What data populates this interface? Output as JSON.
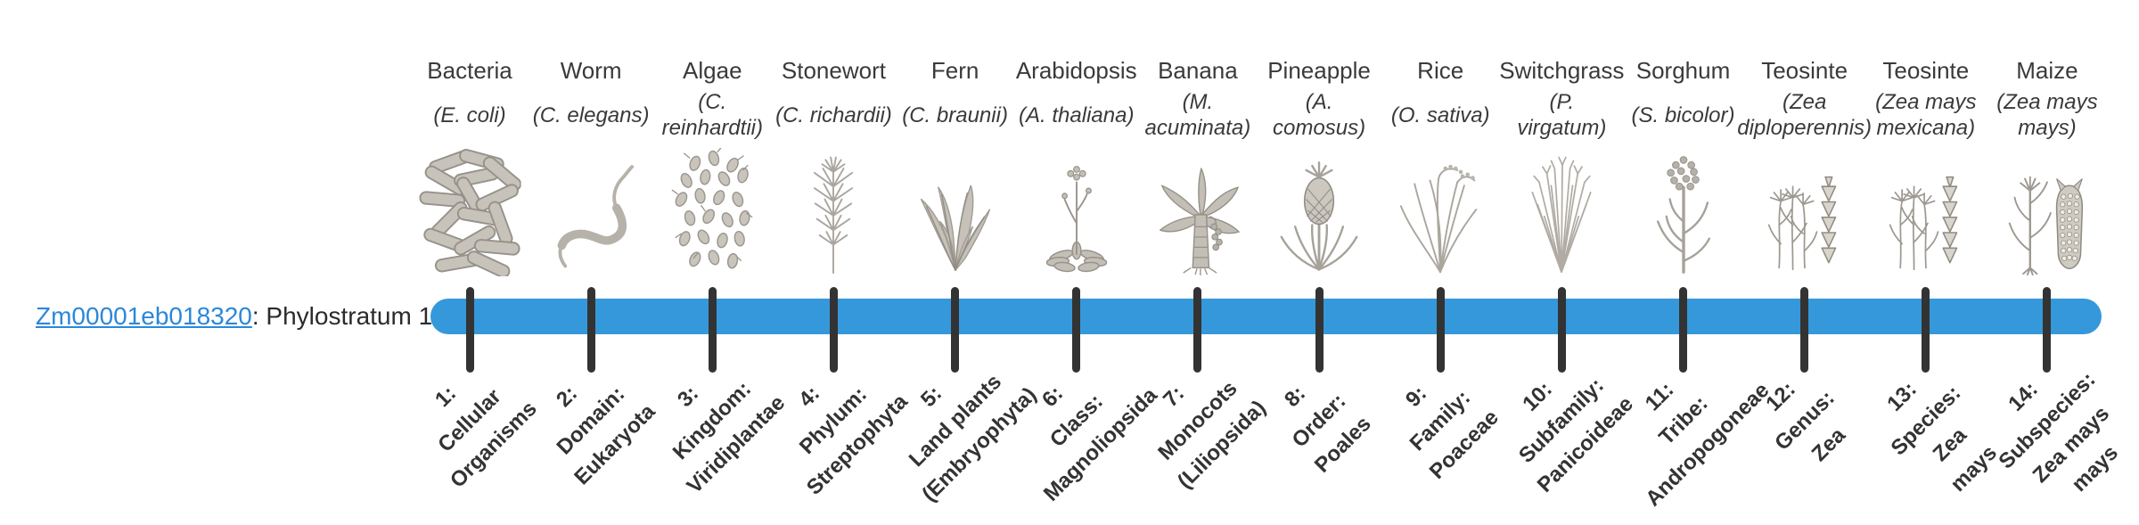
{
  "gene": {
    "gene_id": "Zm00001eb018320",
    "label_rest": ": Phylostratum 1",
    "link_color": "#2b88d9"
  },
  "timeline": {
    "bar_color": "#3598db",
    "tick_color": "#333333",
    "tick_count": 14
  },
  "columns": [
    {
      "organism": "Bacteria",
      "sci_lines": [
        "(E. coli)"
      ],
      "icon": "bacteria-icon",
      "stratum_lines": [
        "1:",
        "Cellular",
        "Organisms"
      ]
    },
    {
      "organism": "Worm",
      "sci_lines": [
        "(C. elegans)"
      ],
      "icon": "worm-icon",
      "stratum_lines": [
        "2:",
        "Domain:",
        "Eukaryota"
      ]
    },
    {
      "organism": "Algae",
      "sci_lines": [
        "(C.",
        "reinhardtii)"
      ],
      "icon": "algae-icon",
      "stratum_lines": [
        "3:",
        "Kingdom:",
        "Viridiplantae"
      ]
    },
    {
      "organism": "Stonewort",
      "sci_lines": [
        "(C. richardii)"
      ],
      "icon": "stonewort-icon",
      "stratum_lines": [
        "4:",
        "Phylum:",
        "Streptophyta"
      ]
    },
    {
      "organism": "Fern",
      "sci_lines": [
        "(C. braunii)"
      ],
      "icon": "fern-icon",
      "stratum_lines": [
        "5:",
        "Land plants",
        "(Embryophyta)"
      ]
    },
    {
      "organism": "Arabidopsis",
      "sci_lines": [
        "(A. thaliana)"
      ],
      "icon": "arabidopsis-icon",
      "stratum_lines": [
        "6:",
        "Class:",
        "Magnoliopsida"
      ]
    },
    {
      "organism": "Banana",
      "sci_lines": [
        "(M.",
        "acuminata)"
      ],
      "icon": "banana-icon",
      "stratum_lines": [
        "7:",
        "Monocots",
        "(Liliopsida)"
      ]
    },
    {
      "organism": "Pineapple",
      "sci_lines": [
        "(A.",
        "comosus)"
      ],
      "icon": "pineapple-icon",
      "stratum_lines": [
        "8:",
        "Order:",
        "Poales"
      ]
    },
    {
      "organism": "Rice",
      "sci_lines": [
        "(O. sativa)"
      ],
      "icon": "rice-icon",
      "stratum_lines": [
        "9:",
        "Family:",
        "Poaceae"
      ]
    },
    {
      "organism": "Switchgrass",
      "sci_lines": [
        "(P.",
        "virgatum)"
      ],
      "icon": "switchgrass-icon",
      "stratum_lines": [
        "10:",
        "Subfamily:",
        "Panicoideae"
      ]
    },
    {
      "organism": "Sorghum",
      "sci_lines": [
        "(S. bicolor)"
      ],
      "icon": "sorghum-icon",
      "stratum_lines": [
        "11:",
        "Tribe:",
        "Andropogoneae"
      ]
    },
    {
      "organism": "Teosinte",
      "sci_lines": [
        "(Zea",
        "diploperennis)"
      ],
      "icon": "teosinte-diploperennis-icon",
      "stratum_lines": [
        "12:",
        "Genus:",
        "Zea"
      ]
    },
    {
      "organism": "Teosinte",
      "sci_lines": [
        "(Zea mays",
        "mexicana)"
      ],
      "icon": "teosinte-mexicana-icon",
      "stratum_lines": [
        "13:",
        "Species:",
        "Zea",
        "mays"
      ]
    },
    {
      "organism": "Maize",
      "sci_lines": [
        "(Zea mays",
        "mays)"
      ],
      "icon": "maize-icon",
      "stratum_lines": [
        "14:",
        "Subspecies:",
        "Zea mays",
        "mays"
      ]
    }
  ]
}
